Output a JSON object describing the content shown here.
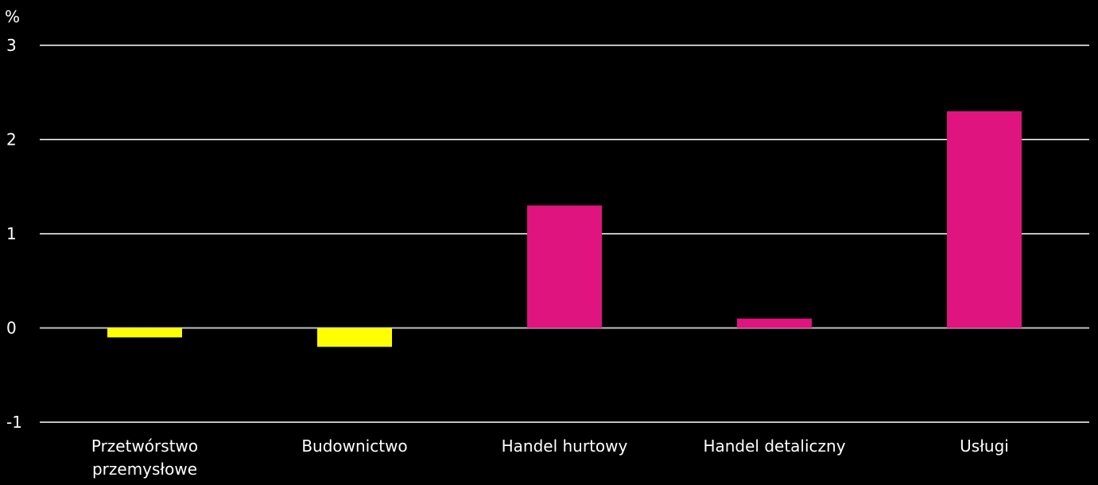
{
  "chart_data": {
    "type": "bar",
    "y_unit_label": "%",
    "categories": [
      [
        "Przetwórstwo",
        "przemysłowe"
      ],
      [
        "Budownictwo"
      ],
      [
        "Handel hurtowy"
      ],
      [
        "Handel detaliczny"
      ],
      [
        "Usługi"
      ]
    ],
    "values": [
      -0.1,
      -0.2,
      1.3,
      0.1,
      2.3
    ],
    "ylim": [
      -1,
      3
    ],
    "yticks": [
      "3",
      "2",
      "1",
      "0",
      "-1"
    ],
    "grid": true,
    "legend": "none",
    "colors": {
      "background": "#000000",
      "negative": "#ffff00",
      "positive": "#e0147e",
      "gridline": "#ffffff",
      "text": "#ffffff"
    }
  }
}
